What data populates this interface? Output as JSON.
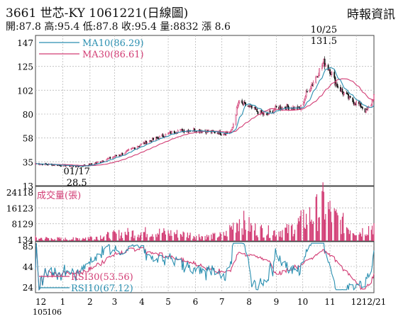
{
  "header": {
    "title": "3661  世芯-KY 1061221(日線圖)",
    "subtitle": "開:87.8 高:95.4 低:87.8 收:95.4 量:8832 漲 8.6",
    "source": "時報資訊"
  },
  "chart_data": {
    "type": "line",
    "price_panel": {
      "ylim": [
        13,
        147
      ],
      "yticks": [
        "147",
        "125",
        "102",
        "80",
        "58",
        "35",
        "13"
      ],
      "legend": [
        {
          "label": "MA10(86.29)",
          "color": "#2a8fb0"
        },
        {
          "label": "MA30(86.61)",
          "color": "#d23c74"
        }
      ],
      "annotations": [
        {
          "text": "10/25",
          "date": "2017-10-25"
        },
        {
          "text": "131.5",
          "date": "2017-10-25",
          "value": 131.5
        },
        {
          "text": "01/17",
          "date": "2017-01-17"
        },
        {
          "text": "28.5",
          "date": "2017-01-17",
          "value": 28.5
        }
      ],
      "close_anchors": [
        [
          "2016-12-01",
          32
        ],
        [
          "2016-12-20",
          31
        ],
        [
          "2017-01-17",
          29.5
        ],
        [
          "2017-02-01",
          31
        ],
        [
          "2017-02-20",
          36
        ],
        [
          "2017-03-10",
          41
        ],
        [
          "2017-04-01",
          50
        ],
        [
          "2017-04-20",
          56
        ],
        [
          "2017-05-10",
          62
        ],
        [
          "2017-05-31",
          63
        ],
        [
          "2017-06-20",
          61
        ],
        [
          "2017-07-05",
          60
        ],
        [
          "2017-07-12",
          62
        ],
        [
          "2017-07-20",
          88
        ],
        [
          "2017-08-01",
          84
        ],
        [
          "2017-08-10",
          80
        ],
        [
          "2017-08-20",
          76
        ],
        [
          "2017-09-01",
          83
        ],
        [
          "2017-09-15",
          84
        ],
        [
          "2017-09-28",
          82
        ],
        [
          "2017-10-05",
          96
        ],
        [
          "2017-10-15",
          110
        ],
        [
          "2017-10-25",
          125
        ],
        [
          "2017-11-01",
          118
        ],
        [
          "2017-11-08",
          105
        ],
        [
          "2017-11-16",
          97
        ],
        [
          "2017-11-25",
          90
        ],
        [
          "2017-12-05",
          86
        ],
        [
          "2017-12-12",
          80
        ],
        [
          "2017-12-18",
          87
        ],
        [
          "2017-12-21",
          95.4
        ]
      ]
    },
    "volume_panel": {
      "ylim": [
        134,
        24118
      ],
      "yticks": [
        "24118",
        "16123",
        "8129",
        "134"
      ],
      "legend": "成交量(張)",
      "color": "#d23c74",
      "volume_anchors": [
        [
          "2016-12-01",
          1800
        ],
        [
          "2017-01-10",
          1200
        ],
        [
          "2017-02-15",
          2800
        ],
        [
          "2017-03-15",
          4500
        ],
        [
          "2017-04-15",
          5000
        ],
        [
          "2017-05-15",
          4000
        ],
        [
          "2017-06-15",
          2500
        ],
        [
          "2017-07-05",
          3500
        ],
        [
          "2017-07-20",
          12000
        ],
        [
          "2017-08-05",
          7000
        ],
        [
          "2017-08-25",
          5000
        ],
        [
          "2017-09-15",
          6000
        ],
        [
          "2017-10-01",
          11000
        ],
        [
          "2017-10-15",
          15000
        ],
        [
          "2017-10-25",
          20000
        ],
        [
          "2017-11-05",
          13000
        ],
        [
          "2017-11-20",
          8000
        ],
        [
          "2017-12-05",
          5000
        ],
        [
          "2017-12-21",
          8832
        ]
      ]
    },
    "rsi_panel": {
      "ylim": [
        24,
        85
      ],
      "yticks": [
        "85",
        "44",
        "24"
      ],
      "legend": [
        {
          "label": "RSI30(53.56)",
          "color": "#d23c74"
        },
        {
          "label": "RSI10(67.12)",
          "color": "#2a8fb0"
        }
      ]
    },
    "x_axis": {
      "start": "2016-12-01",
      "end": "2017-12-21",
      "ticks": [
        {
          "label": "12",
          "date": "2016-12-01"
        },
        {
          "label": "1",
          "date": "2017-01-01"
        },
        {
          "label": "2",
          "date": "2017-02-01"
        },
        {
          "label": "3",
          "date": "2017-03-01"
        },
        {
          "label": "4",
          "date": "2017-04-01"
        },
        {
          "label": "5",
          "date": "2017-05-01"
        },
        {
          "label": "6",
          "date": "2017-06-01"
        },
        {
          "label": "7",
          "date": "2017-07-01"
        },
        {
          "label": "8",
          "date": "2017-08-01"
        },
        {
          "label": "9",
          "date": "2017-09-01"
        },
        {
          "label": "10",
          "date": "2017-10-01"
        },
        {
          "label": "11",
          "date": "2017-11-01"
        },
        {
          "label": "12",
          "date": "2017-12-01"
        },
        {
          "label": "12/21",
          "date": "2017-12-21"
        }
      ],
      "sub_labels": [
        "105",
        "106"
      ]
    },
    "grid": true,
    "colors": {
      "up": "#d23c74",
      "down": "#111111",
      "ma10": "#2a8fb0",
      "ma30": "#d23c74"
    }
  }
}
